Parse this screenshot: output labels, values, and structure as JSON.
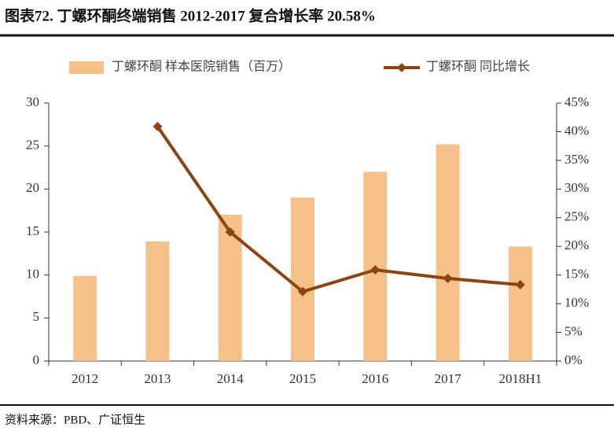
{
  "chart_data": {
    "type": "bar",
    "title": "图表72.  丁螺环酮终端销售 2012-2017 复合增长率 20.58%",
    "source": "资料来源：PBD、广证恒生",
    "categories": [
      "2012",
      "2013",
      "2014",
      "2015",
      "2016",
      "2017",
      "2018H1"
    ],
    "series": [
      {
        "name": "丁螺环酮 样本医院销售（百万）",
        "type": "bar",
        "color": "#f5c08a",
        "values": [
          9.9,
          13.9,
          17.0,
          19.0,
          22.0,
          25.2,
          13.3
        ]
      },
      {
        "name": "丁螺环酮 同比增长",
        "type": "line",
        "axis": "y2",
        "color": "#8c4512",
        "values": [
          null,
          40.9,
          22.5,
          12.1,
          15.9,
          14.4,
          13.3
        ]
      }
    ],
    "ylim": [
      0,
      30
    ],
    "yticks": [
      0,
      5,
      10,
      15,
      20,
      25,
      30
    ],
    "y2lim": [
      0,
      45
    ],
    "y2ticks": [
      {
        "value": 0,
        "label": "0%"
      },
      {
        "value": 5,
        "label": "5%"
      },
      {
        "value": 10,
        "label": "10%"
      },
      {
        "value": 15,
        "label": "15%"
      },
      {
        "value": 20,
        "label": "20%"
      },
      {
        "value": 25,
        "label": "25%"
      },
      {
        "value": 30,
        "label": "30%"
      },
      {
        "value": 35,
        "label": "35%"
      },
      {
        "value": 40,
        "label": "40%"
      },
      {
        "value": 45,
        "label": "45%"
      }
    ],
    "legend": "top"
  }
}
